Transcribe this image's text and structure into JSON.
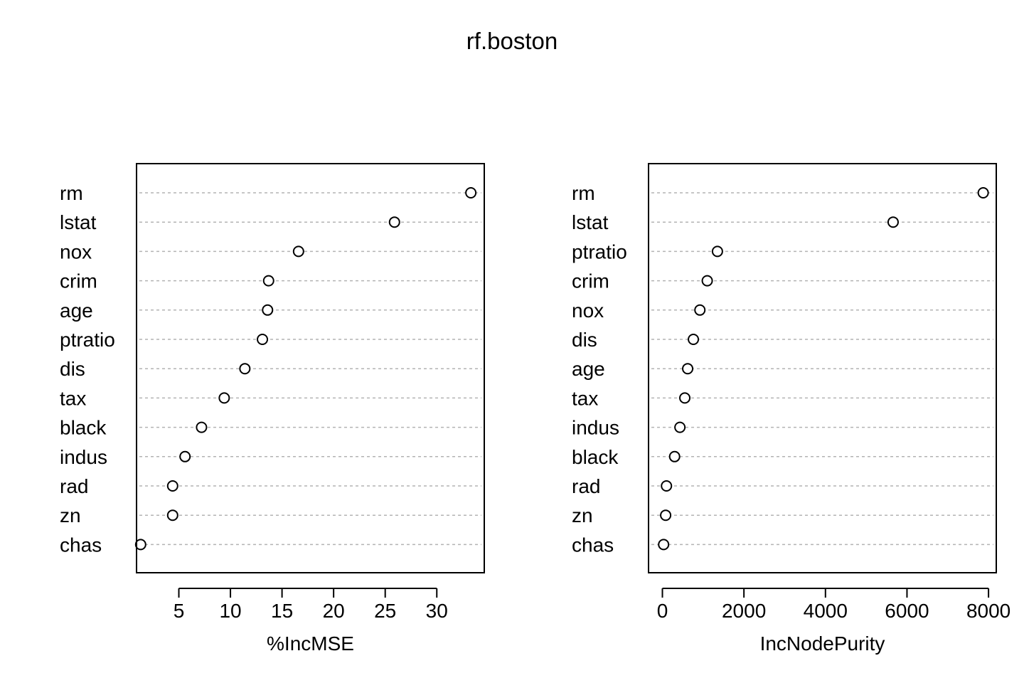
{
  "title": "rf.boston",
  "chart_data": [
    {
      "type": "scatter",
      "xlabel": "%IncMSE",
      "ylabel": "",
      "xlim": [
        0.9,
        34.6
      ],
      "xticks": [
        5,
        10,
        15,
        20,
        25,
        30
      ],
      "grid": "dotted horizontal lines per variable",
      "categories": [
        "rm",
        "lstat",
        "nox",
        "crim",
        "age",
        "ptratio",
        "dis",
        "tax",
        "black",
        "indus",
        "rad",
        "zn",
        "chas"
      ],
      "values": [
        33.3,
        25.9,
        16.6,
        13.7,
        13.6,
        13.1,
        11.4,
        9.4,
        7.2,
        5.6,
        4.4,
        4.4,
        1.3
      ]
    },
    {
      "type": "scatter",
      "xlabel": "IncNodePurity",
      "ylabel": "",
      "xlim": [
        -340,
        8190
      ],
      "xticks": [
        0,
        2000,
        4000,
        6000,
        8000
      ],
      "grid": "dotted horizontal lines per variable",
      "categories": [
        "rm",
        "lstat",
        "ptratio",
        "crim",
        "nox",
        "dis",
        "age",
        "tax",
        "indus",
        "black",
        "rad",
        "zn",
        "chas"
      ],
      "values": [
        7870,
        5660,
        1350,
        1100,
        920,
        760,
        620,
        550,
        430,
        300,
        100,
        80,
        30
      ]
    }
  ]
}
